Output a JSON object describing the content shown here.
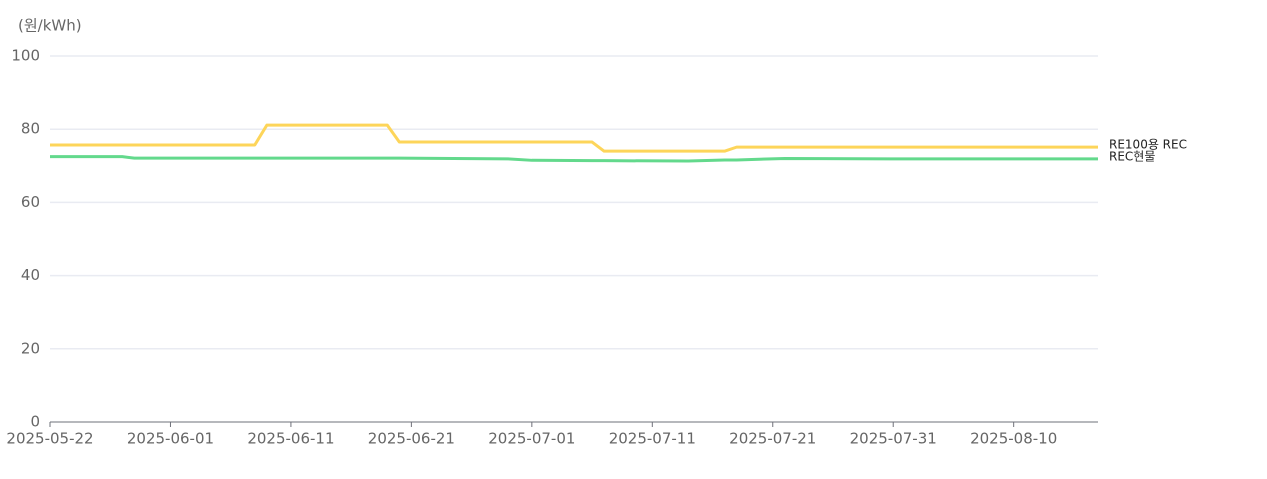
{
  "chart_data": {
    "type": "line",
    "y_label": "(원/kWh)",
    "x": [
      "2025-05-22",
      "2025-05-28",
      "2025-05-29",
      "2025-06-08",
      "2025-06-09",
      "2025-06-19",
      "2025-06-20",
      "2025-06-29",
      "2025-07-01",
      "2025-07-06",
      "2025-07-07",
      "2025-07-14",
      "2025-07-17",
      "2025-07-18",
      "2025-07-22",
      "2025-07-31",
      "2025-08-17"
    ],
    "series": [
      {
        "name": "RE100용 REC",
        "color": "#fdd55a",
        "values": [
          75.7,
          75.7,
          75.7,
          75.7,
          81.1,
          81.1,
          76.5,
          76.5,
          76.5,
          76.5,
          74.0,
          74.0,
          74.0,
          75.1,
          75.1,
          75.1,
          75.1
        ]
      },
      {
        "name": "REC현물",
        "color": "#63d98c",
        "values": [
          72.5,
          72.5,
          72.1,
          72.1,
          72.1,
          72.1,
          72.1,
          71.9,
          71.5,
          71.4,
          71.4,
          71.3,
          71.6,
          71.6,
          72.0,
          71.9,
          71.9
        ]
      }
    ],
    "xlim": [
      "2025-05-22",
      "2025-08-17"
    ],
    "xticks": [
      "2025-05-22",
      "2025-06-01",
      "2025-06-11",
      "2025-06-21",
      "2025-07-01",
      "2025-07-11",
      "2025-07-21",
      "2025-07-31",
      "2025-08-10"
    ],
    "ylim": [
      0,
      100
    ],
    "yticks": [
      0,
      20,
      40,
      60,
      80,
      100
    ],
    "grid": true
  }
}
